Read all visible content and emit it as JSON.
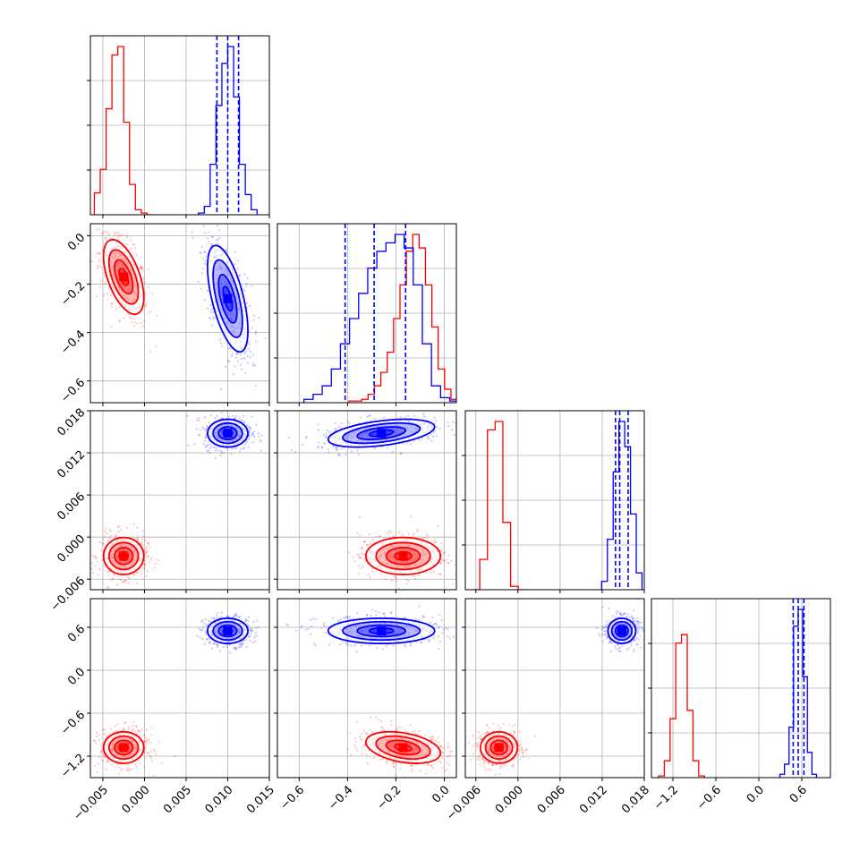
{
  "chart_data": {
    "type": "corner",
    "params": [
      {
        "ticks": [
          -0.005,
          0.0,
          0.005,
          0.01,
          0.015
        ],
        "tick_labels": [
          "−0.005",
          "0.000",
          "0.005",
          "0.010",
          "0.015"
        ],
        "range": [
          -0.0065,
          0.015
        ]
      },
      {
        "ticks": [
          -0.6,
          -0.4,
          -0.2,
          0.0
        ],
        "tick_labels": [
          "−0.6",
          "−0.4",
          "−0.2",
          "0.0"
        ],
        "range": [
          -0.69,
          0.05
        ]
      },
      {
        "ticks": [
          -0.006,
          0.0,
          0.006,
          0.012,
          0.018
        ],
        "tick_labels": [
          "−0.006",
          "0.000",
          "0.006",
          "0.012",
          "0.018"
        ],
        "range": [
          -0.0075,
          0.018
        ]
      },
      {
        "ticks": [
          -1.2,
          -0.6,
          0.0,
          0.6
        ],
        "tick_labels": [
          "−1.2",
          "−0.6",
          "0.0",
          "0.6"
        ],
        "range": [
          -1.5,
          1.0
        ]
      }
    ],
    "series": [
      {
        "color": "#ff0000",
        "means": [
          -0.0025,
          -0.17,
          -0.0027,
          -1.08
        ],
        "sds": [
          0.0011,
          0.07,
          0.0012,
          0.1
        ],
        "hist_counts": [
          [
            0.13,
            0.27,
            0.63,
            0.95,
            1.0,
            0.55,
            0.18,
            0.03,
            0.01,
            0.0
          ],
          [
            0.01,
            0.01,
            0.02,
            0.05,
            0.1,
            0.18,
            0.3,
            0.5,
            0.7,
            0.9,
            1.0,
            0.92,
            0.7,
            0.45,
            0.2,
            0.08,
            0.02
          ],
          [
            0.0,
            0.18,
            0.95,
            1.0,
            0.4,
            0.02,
            0.0
          ],
          [
            0.01,
            0.1,
            0.35,
            0.8,
            0.85,
            0.4,
            0.1,
            0.01
          ]
        ]
      },
      {
        "color": "#0000ff",
        "means": [
          0.01,
          -0.26,
          0.0148,
          0.55
        ],
        "sds": [
          0.0011,
          0.1,
          0.0009,
          0.08
        ],
        "quantiles": [
          [
            0.0087,
            0.01,
            0.0113
          ],
          [
            -0.41,
            -0.29,
            -0.16
          ],
          [
            0.0139,
            0.0145,
            0.0157
          ],
          [
            0.48,
            0.55,
            0.63
          ]
        ],
        "hist_counts": [
          [
            0.01,
            0.05,
            0.3,
            0.65,
            0.9,
            1.0,
            0.7,
            0.3,
            0.12,
            0.03
          ],
          [
            0.02,
            0.05,
            0.1,
            0.2,
            0.35,
            0.5,
            0.65,
            0.8,
            0.9,
            0.95,
            1.0,
            0.92,
            0.7,
            0.35,
            0.1,
            0.03,
            0.01
          ],
          [
            0.05,
            0.3,
            0.7,
            1.0,
            0.85,
            0.45,
            0.1
          ],
          [
            0.02,
            0.08,
            0.3,
            0.9,
            1.0,
            0.6,
            0.15,
            0.02
          ]
        ]
      }
    ],
    "grid": true
  }
}
